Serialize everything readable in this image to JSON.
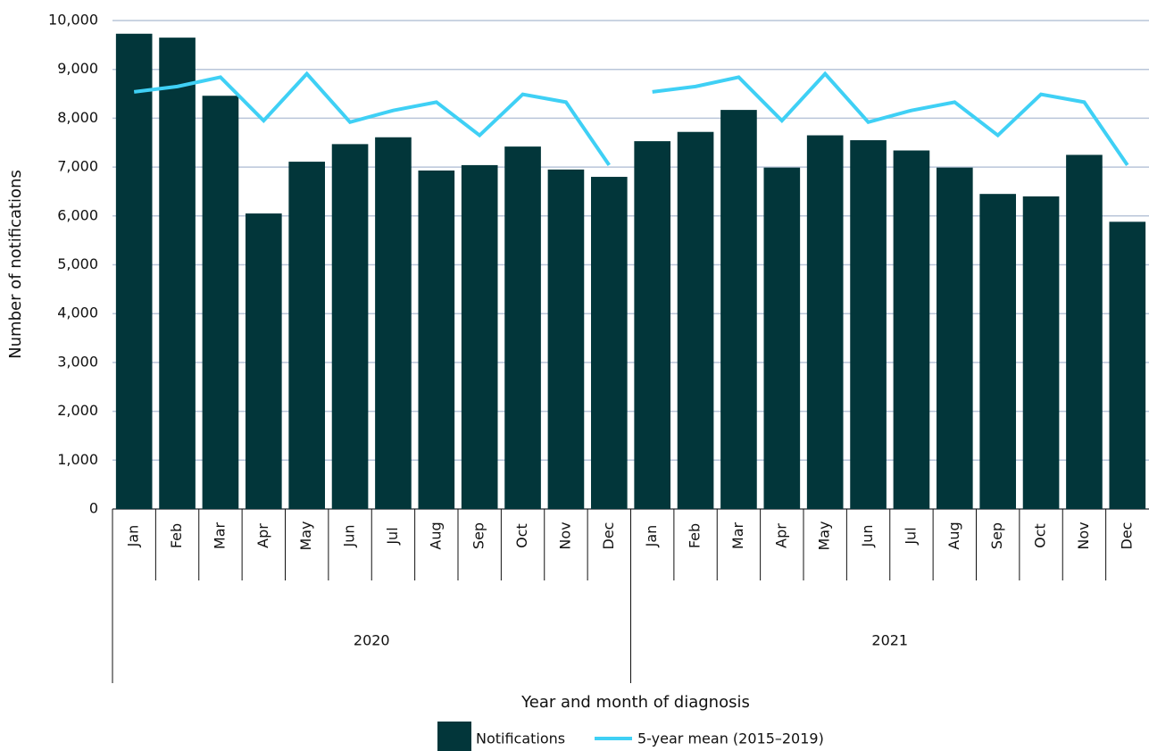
{
  "chart_data": {
    "type": "bar",
    "x_label": "Year and month of diagnosis",
    "y_label": "Number of notifications",
    "ylim": [
      0,
      10000
    ],
    "yticks": [
      0,
      {
        "value": 1000,
        "label": "1,000"
      },
      {
        "value": 2000,
        "label": "2,000"
      },
      {
        "value": 3000,
        "label": "3,000"
      },
      {
        "value": 4000,
        "label": "4,000"
      },
      {
        "value": 5000,
        "label": "5,000"
      },
      {
        "value": 6000,
        "label": "6,000"
      },
      {
        "value": 7000,
        "label": "7,000"
      },
      {
        "value": 8000,
        "label": "8,000"
      },
      {
        "value": 9000,
        "label": "9,000"
      },
      {
        "value": 10000,
        "label": "10,000"
      }
    ],
    "grid": true,
    "groups": [
      {
        "name": "2020",
        "categories": [
          "Jan",
          "Feb",
          "Mar",
          "Apr",
          "May",
          "Jun",
          "Jul",
          "Aug",
          "Sep",
          "Oct",
          "Nov",
          "Dec"
        ]
      },
      {
        "name": "2021",
        "categories": [
          "Jan",
          "Feb",
          "Mar",
          "Apr",
          "May",
          "Jun",
          "Jul",
          "Aug",
          "Sep",
          "Oct",
          "Nov",
          "Dec"
        ]
      }
    ],
    "series": [
      {
        "name": "Notifications",
        "type": "bar",
        "color": "#02363a",
        "values": [
          [
            9730,
            9650,
            8460,
            6050,
            7110,
            7470,
            7610,
            6930,
            7040,
            7420,
            6950,
            6800
          ],
          [
            7530,
            7720,
            8170,
            6990,
            7650,
            7550,
            7340,
            6990,
            6450,
            6400,
            7250,
            5880
          ]
        ]
      },
      {
        "name": "5-year mean (2015–2019)",
        "type": "line",
        "color": "#3fd0f5",
        "values": [
          [
            8540,
            8650,
            8840,
            7950,
            8910,
            7920,
            8160,
            8330,
            7650,
            8490,
            8330,
            7040
          ],
          [
            8540,
            8650,
            8840,
            7950,
            8910,
            7920,
            8160,
            8330,
            7650,
            8490,
            8330,
            7040
          ]
        ]
      }
    ]
  }
}
